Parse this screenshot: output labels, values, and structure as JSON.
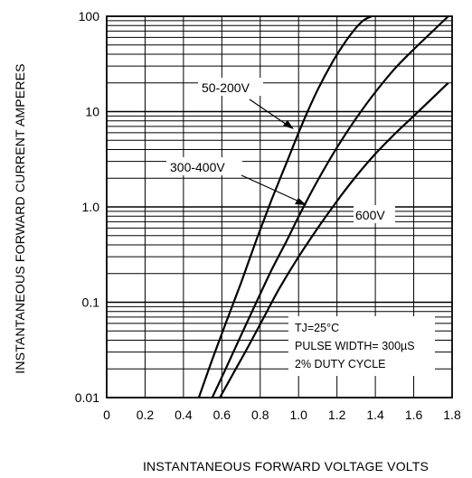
{
  "chart_data": {
    "type": "line",
    "title": "",
    "xlabel": "INSTANTANEOUS FORWARD VOLTAGE VOLTS",
    "ylabel": "INSTANTANEOUS FORWARD CURRENT AMPERES",
    "xlim": [
      0,
      1.8
    ],
    "ylim": [
      0.01,
      100
    ],
    "yscale": "log",
    "grid": true,
    "x_ticks": [
      "0",
      "0.2",
      "0.4",
      "0.6",
      "0.8",
      "1.0",
      "1.2",
      "1.4",
      "1.6",
      "1.8"
    ],
    "y_ticks": [
      "0.01",
      "0.1",
      "1.0",
      "10",
      "100"
    ],
    "series": [
      {
        "name": "50-200V",
        "x": [
          0.48,
          0.55,
          0.62,
          0.7,
          0.78,
          0.86,
          0.94,
          1.02,
          1.1,
          1.18,
          1.26,
          1.33,
          1.38
        ],
        "y": [
          0.01,
          0.025,
          0.06,
          0.16,
          0.45,
          1.2,
          3.0,
          7.5,
          17,
          34,
          60,
          88,
          100
        ]
      },
      {
        "name": "300-400V",
        "x": [
          0.55,
          0.62,
          0.7,
          0.78,
          0.86,
          0.94,
          1.02,
          1.1,
          1.2,
          1.3,
          1.4,
          1.5,
          1.6,
          1.7,
          1.78
        ],
        "y": [
          0.01,
          0.02,
          0.045,
          0.1,
          0.22,
          0.45,
          0.95,
          1.9,
          4.2,
          8.5,
          16,
          28,
          45,
          70,
          100
        ]
      },
      {
        "name": "600V",
        "x": [
          0.59,
          0.66,
          0.74,
          0.82,
          0.9,
          1.0,
          1.1,
          1.2,
          1.3,
          1.4,
          1.5,
          1.6,
          1.7,
          1.78
        ],
        "y": [
          0.01,
          0.018,
          0.035,
          0.07,
          0.14,
          0.3,
          0.6,
          1.15,
          2.1,
          3.6,
          5.8,
          9.0,
          14,
          20
        ]
      }
    ],
    "annotations": [
      "TJ=25°C",
      "PULSE WIDTH= 300µS",
      "2% DUTY CYCLE"
    ],
    "colors": {
      "line": "#000000",
      "grid": "#000000",
      "background": "#ffffff"
    }
  }
}
